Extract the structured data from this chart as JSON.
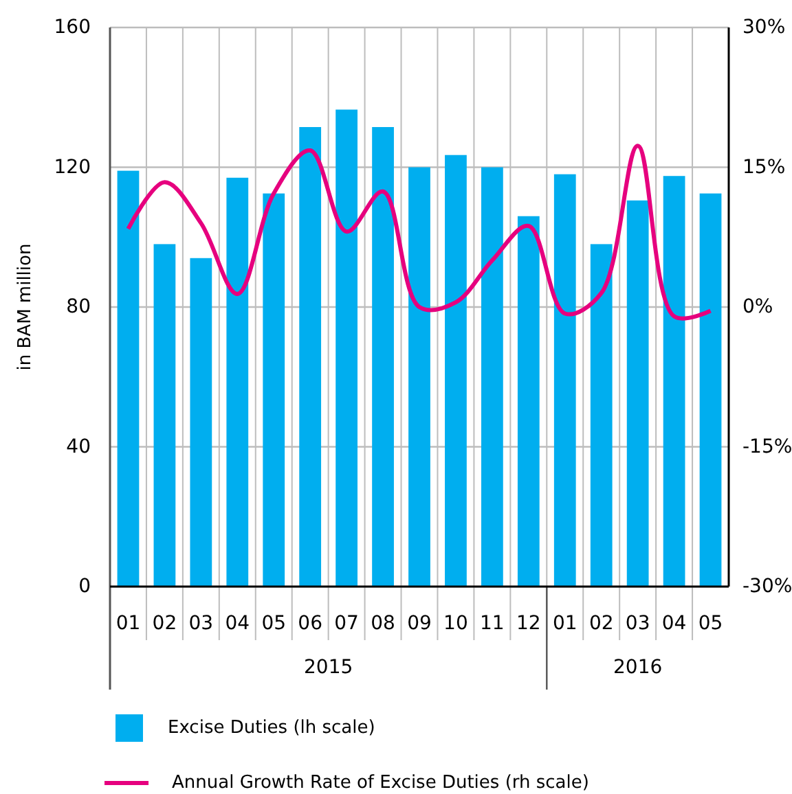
{
  "chart_data": {
    "type": "bar",
    "ylabel": "in BAM million",
    "categories": [
      "01",
      "02",
      "03",
      "04",
      "05",
      "06",
      "07",
      "08",
      "09",
      "10",
      "11",
      "12",
      "01",
      "02",
      "03",
      "04",
      "05"
    ],
    "series": [
      {
        "name": "Excise Duties (lh scale)",
        "color": "#00aeef",
        "values": [
          119,
          98,
          94,
          117,
          112.5,
          131.5,
          136.5,
          131.5,
          120,
          123.5,
          120,
          106,
          118,
          98,
          110.5,
          117.5,
          112.5
        ]
      },
      {
        "name": "Annual Growth Rate of Excise Duties (rh scale)",
        "type": "line",
        "axis": "y2",
        "color": "#e6007e",
        "values": [
          8.4,
          13.4,
          9,
          1.4,
          12.2,
          16.8,
          8.1,
          12.4,
          0,
          0.5,
          5,
          8.7,
          -0.7,
          1.5,
          17.3,
          -1,
          -0.4
        ]
      }
    ],
    "ylim": [
      0,
      160
    ],
    "yticks": [
      0,
      40,
      80,
      120,
      160
    ],
    "y2lim": [
      -30,
      30
    ],
    "y2ticks": [
      {
        "value": -30,
        "label": "-30%"
      },
      {
        "value": -15,
        "label": "-15%"
      },
      {
        "value": 0,
        "label": "0%"
      },
      {
        "value": 15,
        "label": "15%"
      },
      {
        "value": 30,
        "label": "30%"
      }
    ],
    "annotations": [
      "2015",
      "2016"
    ],
    "grid": true,
    "legend": "bottom",
    "marker": "none",
    "line_style": "solid"
  }
}
